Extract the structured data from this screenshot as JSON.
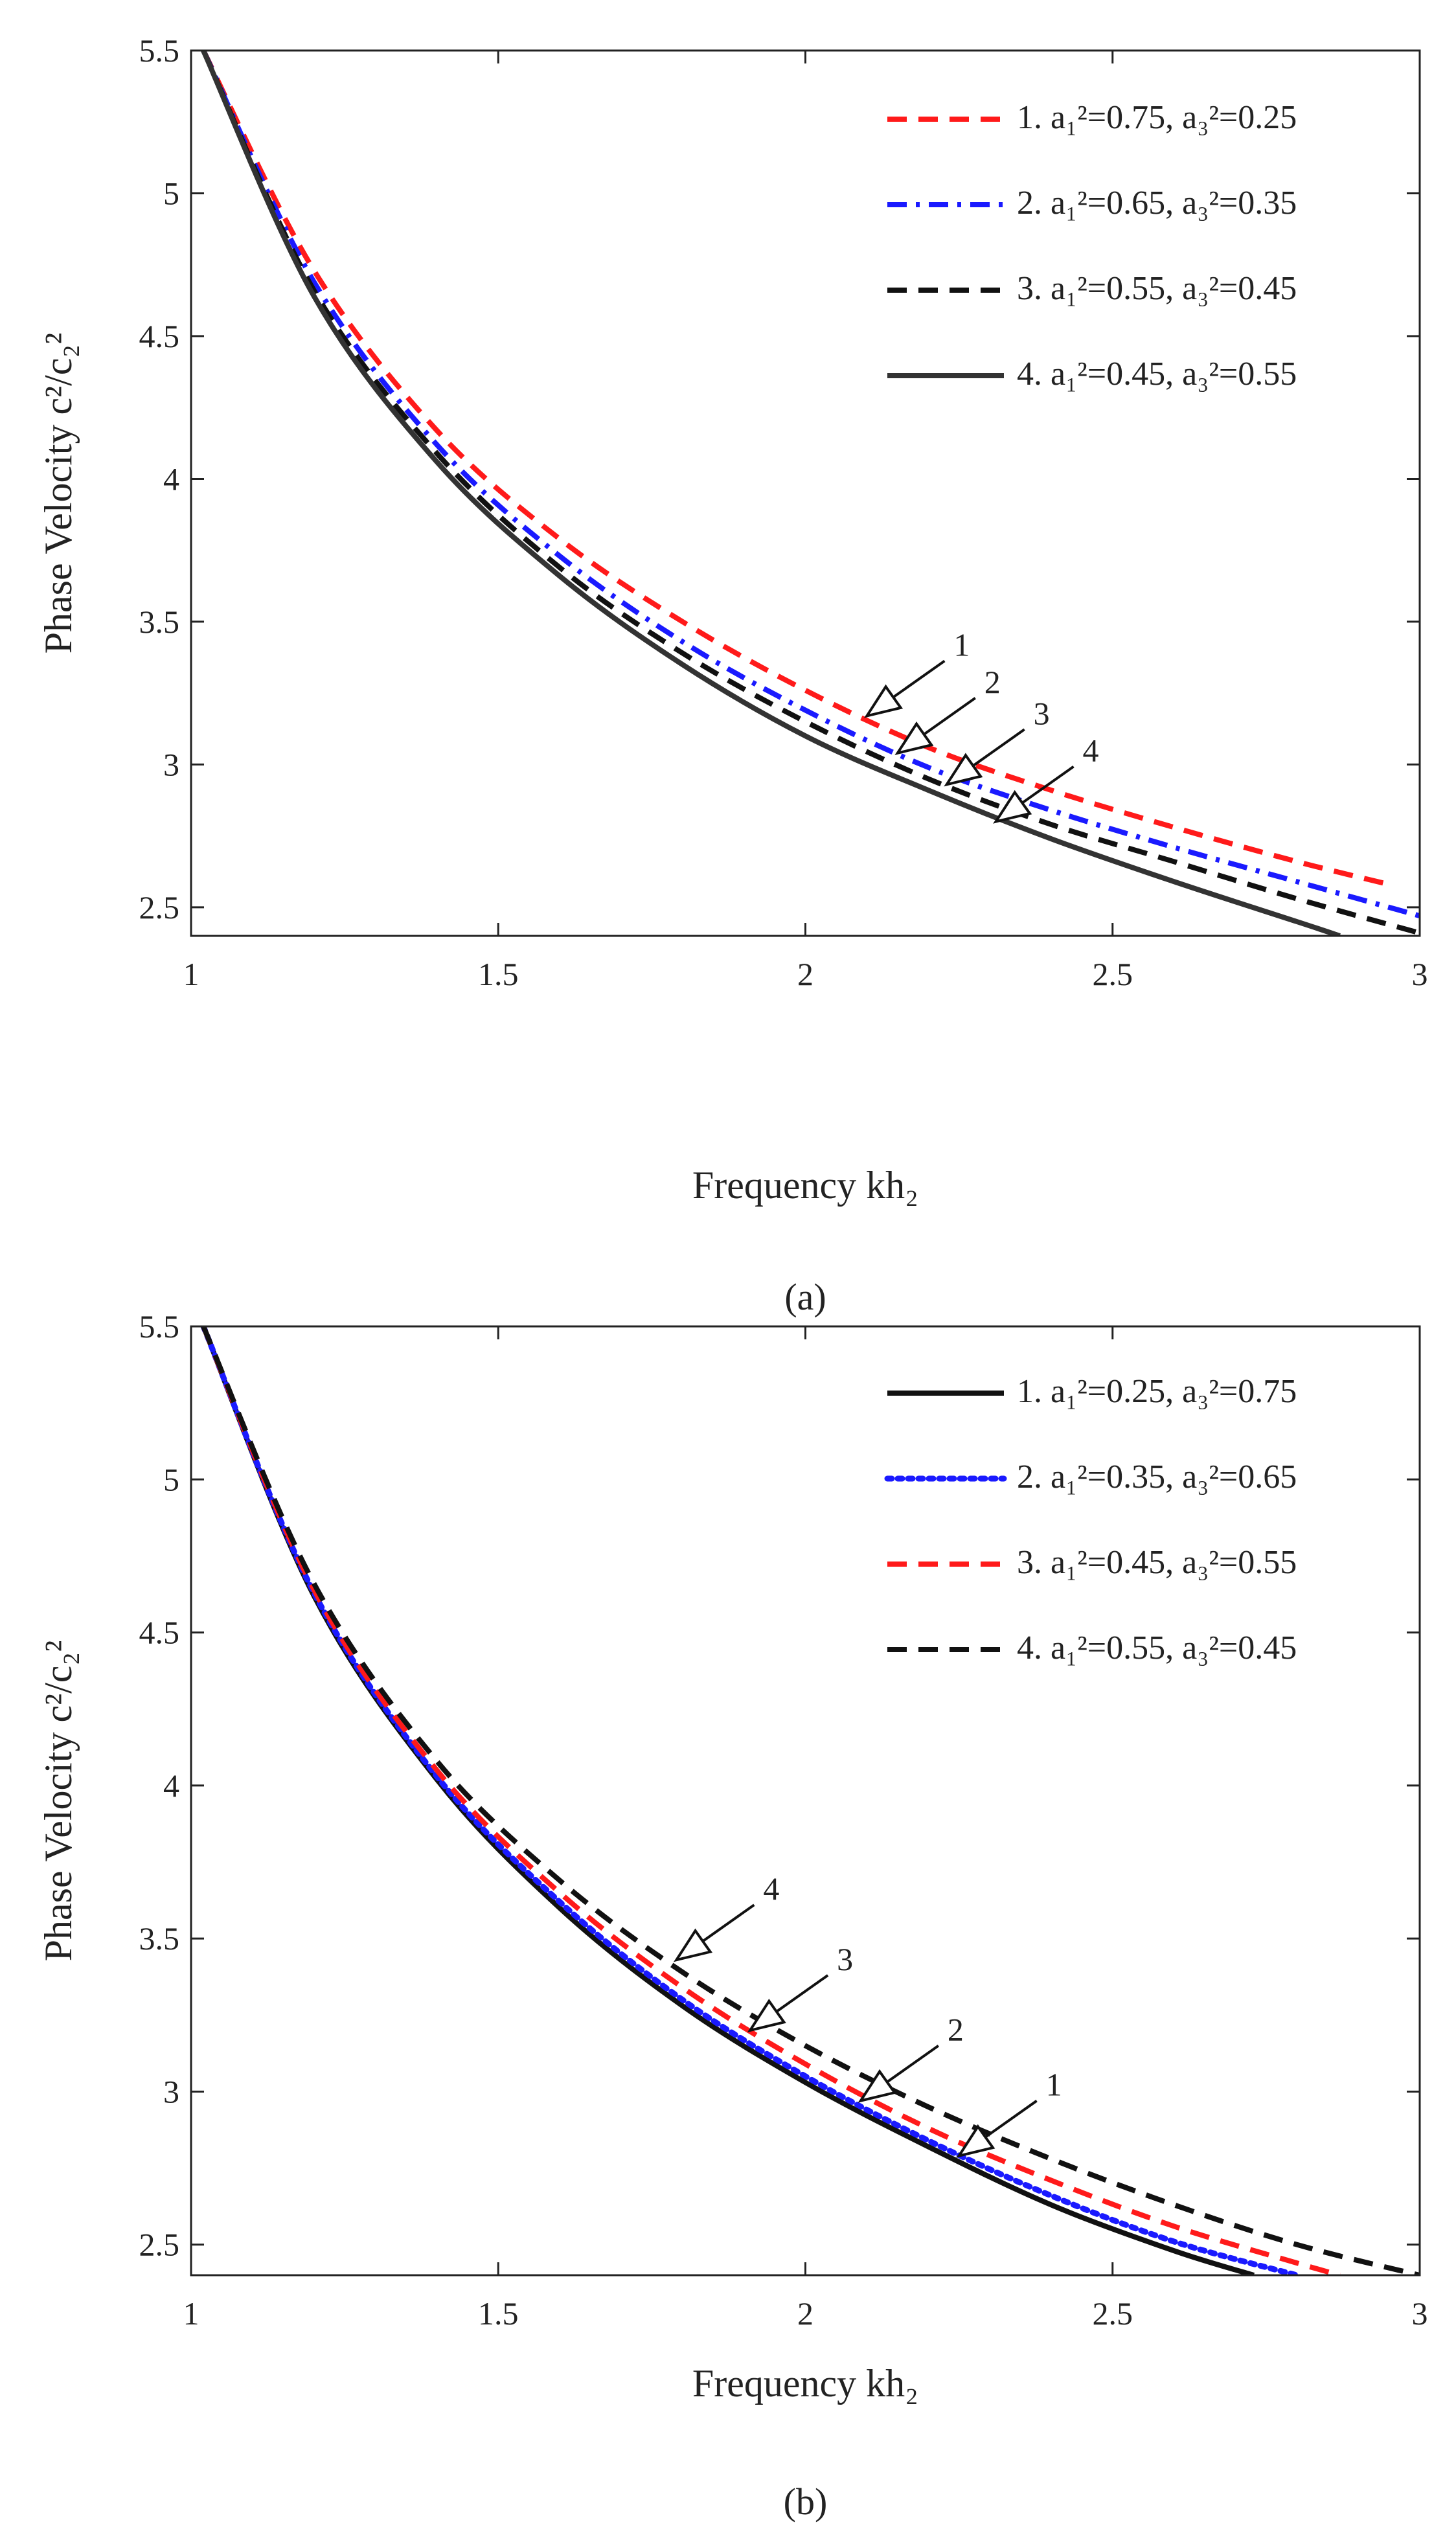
{
  "charts": [
    {
      "caption": "(a)",
      "xlabel": "Frequency kh₂",
      "ylabel": "Phase Velocity c²/c₂²",
      "xticks": [
        "1",
        "1.5",
        "2",
        "2.5",
        "3"
      ],
      "yticks": [
        "2.5",
        "3",
        "3.5",
        "4",
        "4.5",
        "5",
        "5.5"
      ]
    },
    {
      "caption": "(b)",
      "xlabel": "Frequency kh₂",
      "ylabel": "Phase Velocity c²/c₂²",
      "xticks": [
        "1",
        "1.5",
        "2",
        "2.5",
        "3"
      ],
      "yticks": [
        "2.5",
        "3",
        "3.5",
        "4",
        "4.5",
        "5",
        "5.5"
      ]
    }
  ],
  "chart_data": [
    {
      "type": "line",
      "xlabel": "Frequency kh₂",
      "ylabel": "Phase Velocity c²/c₂²",
      "xlim": [
        1,
        3
      ],
      "ylim": [
        2.4,
        5.5
      ],
      "grid": false,
      "legend_position": "top-right",
      "series": [
        {
          "name": "1. a₁²=0.75, a₃²=0.25",
          "color": "#ff1a1a",
          "style": "dashed",
          "x": [
            1.02,
            1.2,
            1.4,
            1.6,
            1.8,
            2.0,
            2.2,
            2.4,
            2.6,
            2.8,
            2.95
          ],
          "y": [
            5.5,
            4.73,
            4.17,
            3.79,
            3.5,
            3.26,
            3.06,
            2.91,
            2.78,
            2.66,
            2.58
          ]
        },
        {
          "name": "2. a₁²=0.65, a₃²=0.35",
          "color": "#1a1aff",
          "style": "dashdot",
          "x": [
            1.02,
            1.2,
            1.4,
            1.6,
            1.8,
            2.0,
            2.2,
            2.4,
            2.6,
            2.8,
            3.0
          ],
          "y": [
            5.5,
            4.69,
            4.12,
            3.73,
            3.43,
            3.19,
            2.99,
            2.84,
            2.71,
            2.59,
            2.47
          ]
        },
        {
          "name": "3. a₁²=0.55, a₃²=0.45",
          "color": "#111111",
          "style": "dashed",
          "x": [
            1.02,
            1.2,
            1.4,
            1.6,
            1.8,
            2.0,
            2.2,
            2.4,
            2.6,
            2.8,
            3.0
          ],
          "y": [
            5.5,
            4.66,
            4.09,
            3.69,
            3.39,
            3.15,
            2.95,
            2.79,
            2.66,
            2.53,
            2.41
          ]
        },
        {
          "name": "4. a₁²=0.45, a₃²=0.55",
          "color": "#333333",
          "style": "solid",
          "x": [
            1.02,
            1.2,
            1.4,
            1.6,
            1.8,
            2.0,
            2.2,
            2.4,
            2.6,
            2.8,
            2.87
          ],
          "y": [
            5.5,
            4.64,
            4.06,
            3.66,
            3.35,
            3.1,
            2.91,
            2.74,
            2.59,
            2.45,
            2.4
          ]
        }
      ],
      "annotations": [
        {
          "text": "1",
          "x": 2.1,
          "y": 3.17
        },
        {
          "text": "2",
          "x": 2.15,
          "y": 3.04
        },
        {
          "text": "3",
          "x": 2.23,
          "y": 2.93
        },
        {
          "text": "4",
          "x": 2.31,
          "y": 2.8
        }
      ]
    },
    {
      "type": "line",
      "xlabel": "Frequency kh₂",
      "ylabel": "Phase Velocity c²/c₂²",
      "xlim": [
        1,
        3
      ],
      "ylim": [
        2.4,
        5.5
      ],
      "grid": false,
      "legend_position": "top-right",
      "series": [
        {
          "name": "1. a₁²=0.25, a₃²=0.75",
          "color": "#111111",
          "style": "solid",
          "x": [
            1.02,
            1.2,
            1.4,
            1.6,
            1.8,
            2.0,
            2.2,
            2.4,
            2.6,
            2.73
          ],
          "y": [
            5.5,
            4.62,
            4.02,
            3.6,
            3.28,
            3.03,
            2.82,
            2.63,
            2.48,
            2.4
          ]
        },
        {
          "name": "2. a₁²=0.35, a₃²=0.65",
          "color": "#1a1aff",
          "style": "dotted",
          "x": [
            1.02,
            1.2,
            1.4,
            1.6,
            1.8,
            2.0,
            2.2,
            2.4,
            2.6,
            2.8
          ],
          "y": [
            5.5,
            4.63,
            4.03,
            3.62,
            3.3,
            3.05,
            2.84,
            2.66,
            2.51,
            2.4
          ]
        },
        {
          "name": "3. a₁²=0.45, a₃²=0.55",
          "color": "#ff1a1a",
          "style": "dashed",
          "x": [
            1.02,
            1.2,
            1.4,
            1.6,
            1.8,
            2.0,
            2.2,
            2.4,
            2.6,
            2.8,
            2.87
          ],
          "y": [
            5.5,
            4.64,
            4.05,
            3.65,
            3.34,
            3.09,
            2.88,
            2.71,
            2.56,
            2.44,
            2.4
          ]
        },
        {
          "name": "4. a₁²=0.55, a₃²=0.45",
          "color": "#111111",
          "style": "dashed",
          "x": [
            1.02,
            1.2,
            1.4,
            1.6,
            1.8,
            2.0,
            2.2,
            2.4,
            2.6,
            2.8,
            3.0
          ],
          "y": [
            5.5,
            4.66,
            4.08,
            3.69,
            3.39,
            3.15,
            2.95,
            2.78,
            2.63,
            2.5,
            2.4
          ]
        }
      ],
      "annotations": [
        {
          "text": "4",
          "x": 1.79,
          "y": 3.43
        },
        {
          "text": "3",
          "x": 1.91,
          "y": 3.2
        },
        {
          "text": "2",
          "x": 2.09,
          "y": 2.97
        },
        {
          "text": "1",
          "x": 2.25,
          "y": 2.79
        }
      ]
    }
  ]
}
